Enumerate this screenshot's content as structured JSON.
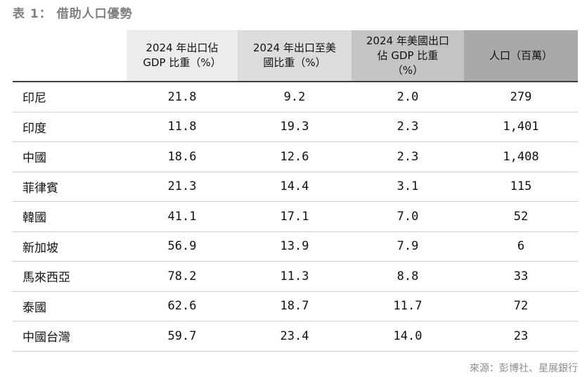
{
  "title": "表 1： 借助人口優勢",
  "table": {
    "header": [
      [],
      [
        "2024 年出口佔",
        "GDP 比重（%）"
      ],
      [
        "2024 年出口至美",
        "國比重（%）"
      ],
      [
        "2024 年美國出口",
        "佔 GDP 比重",
        "（%）"
      ],
      [
        "人口（百萬）"
      ]
    ],
    "rows": [
      [
        "印尼",
        "21.8",
        "9.2",
        "2.0",
        "279"
      ],
      [
        "印度",
        "11.8",
        "19.3",
        "2.3",
        "1,401"
      ],
      [
        "中國",
        "18.6",
        "12.6",
        "2.3",
        "1,408"
      ],
      [
        "菲律賓",
        "21.3",
        "14.4",
        "3.1",
        "115"
      ],
      [
        "韓國",
        "41.1",
        "17.1",
        "7.0",
        "52"
      ],
      [
        "新加坡",
        "56.9",
        "13.9",
        "7.9",
        "6"
      ],
      [
        "馬來西亞",
        "78.2",
        "11.3",
        "8.8",
        "33"
      ],
      [
        "泰國",
        "62.6",
        "18.7",
        "11.7",
        "72"
      ],
      [
        "中國台灣",
        "59.7",
        "23.4",
        "14.0",
        "23"
      ]
    ]
  },
  "source": "來源：彭博社、星展銀行"
}
